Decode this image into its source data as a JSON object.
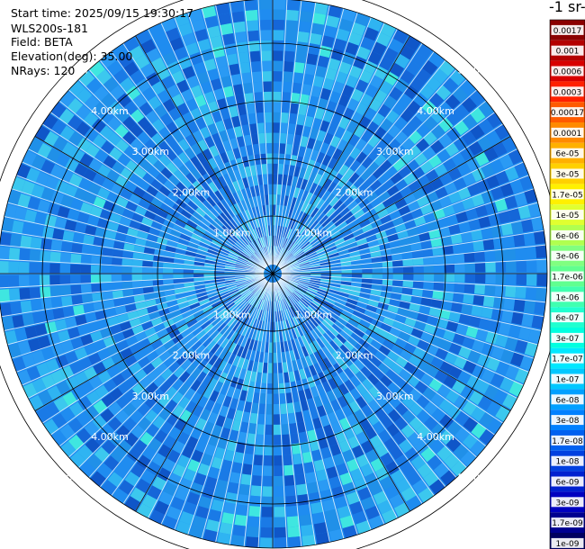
{
  "header": {
    "start_time": "Start time: 2025/09/15 19:30:17",
    "instrument": "WLS200s-181",
    "field": "Field: BETA",
    "elevation": "Elevation(deg): 35.00",
    "nrays": "NRays: 120"
  },
  "colorbar": {
    "title_fragment": "-1 sr-",
    "labels": [
      "0.0017",
      "0.001",
      "0.0006",
      "0.0003",
      "0.00017",
      "0.0001",
      "6e-05",
      "3e-05",
      "1.7e-05",
      "1e-05",
      "6e-06",
      "3e-06",
      "1.7e-06",
      "1e-06",
      "6e-07",
      "3e-07",
      "1.7e-07",
      "1e-07",
      "6e-08",
      "3e-08",
      "1.7e-08",
      "1e-08",
      "6e-09",
      "3e-09",
      "1.7e-09",
      "1e-09"
    ],
    "colors": [
      "#8b0000",
      "#b40000",
      "#d80000",
      "#ff2000",
      "#ff5a00",
      "#ff8a00",
      "#ffb000",
      "#ffd000",
      "#fff000",
      "#e0ff30",
      "#b0ff50",
      "#80ff80",
      "#60ff90",
      "#40ffb0",
      "#20ffd0",
      "#00ffe0",
      "#00e8ff",
      "#00c8ff",
      "#00a0ff",
      "#0080ff",
      "#0060f0",
      "#0040e0",
      "#0020d0",
      "#0000c0",
      "#000090",
      "#000060"
    ]
  },
  "chart_data": {
    "type": "heatmap",
    "projection": "polar PPI scan",
    "field": "BETA",
    "nrays": 120,
    "range_rings_km": [
      1,
      2,
      3,
      4,
      5
    ],
    "ring_labels": [
      "1.00km",
      "2.00km",
      "3.00km",
      "4.00km",
      "5.00km"
    ],
    "azimuth_lines": 12,
    "max_range_km": 5,
    "typical_value": "3e-08",
    "colorscale": "log",
    "value_range": [
      "1e-09",
      "0.0017"
    ]
  }
}
